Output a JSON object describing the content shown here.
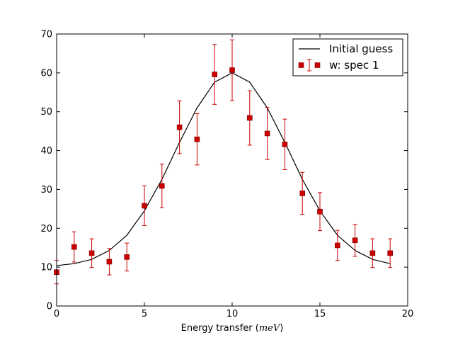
{
  "chart_data": {
    "type": "scatter",
    "title": "",
    "xlabel": "Energy transfer",
    "xlabel_unit": "meV",
    "ylabel": "",
    "xlim": [
      0,
      20
    ],
    "ylim": [
      0,
      70
    ],
    "xticks": [
      0,
      5,
      10,
      15,
      20
    ],
    "yticks": [
      0,
      10,
      20,
      30,
      40,
      50,
      60,
      70
    ],
    "legend_position": "top-right",
    "series": [
      {
        "name": "Initial guess",
        "kind": "line",
        "color": "#000000",
        "x": [
          0,
          1,
          2,
          3,
          4,
          5,
          6,
          7,
          8,
          9,
          10,
          11,
          12,
          13,
          14,
          15,
          16,
          17,
          18,
          19
        ],
        "y": [
          10.4,
          10.9,
          12.0,
          14.3,
          18.2,
          24.5,
          32.6,
          42.1,
          51.0,
          57.6,
          60.0,
          57.6,
          51.0,
          42.1,
          32.6,
          24.5,
          18.2,
          14.3,
          12.0,
          10.9
        ]
      },
      {
        "name": "w: spec 1",
        "kind": "errorbar",
        "color": "#cc0000",
        "x": [
          0,
          1,
          2,
          3,
          4,
          5,
          6,
          7,
          8,
          9,
          10,
          11,
          12,
          13,
          14,
          15,
          16,
          17,
          18,
          19
        ],
        "y": [
          8.7,
          15.2,
          13.6,
          11.4,
          12.6,
          25.8,
          30.9,
          46.0,
          42.9,
          59.6,
          60.7,
          48.4,
          44.4,
          41.6,
          29.0,
          24.3,
          15.6,
          16.9,
          13.6,
          13.6
        ],
        "yerr": [
          3.0,
          3.9,
          3.7,
          3.4,
          3.6,
          5.1,
          5.6,
          6.8,
          6.6,
          7.7,
          7.8,
          7.0,
          6.7,
          6.5,
          5.4,
          4.9,
          3.9,
          4.1,
          3.7,
          3.7
        ]
      }
    ]
  }
}
